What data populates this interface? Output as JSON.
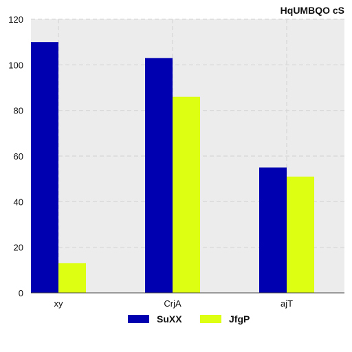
{
  "chart_data": {
    "type": "bar",
    "title": "HqUMBQO cS",
    "xlabel": "",
    "ylabel": "",
    "categories": [
      "xy",
      "CrjA",
      "ajT"
    ],
    "series": [
      {
        "name": "SuXX",
        "color": "#0000b0",
        "values": [
          110,
          103,
          55
        ]
      },
      {
        "name": "JfgP",
        "color": "#ddff11",
        "values": [
          13,
          86,
          51
        ]
      }
    ],
    "ylim": [
      0,
      120
    ],
    "yticks": [
      0,
      20,
      40,
      60,
      80,
      100,
      120
    ],
    "grid": true,
    "legend_position": "bottom",
    "plot_background": "#ececec"
  }
}
